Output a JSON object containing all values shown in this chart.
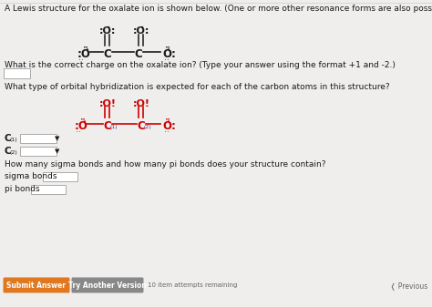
{
  "bg_color": "#f0eeec",
  "white": "#ffffff",
  "title_text": "A Lewis structure for the oxalate ion is shown below. (One or more other resonance forms are also possible.)",
  "q1_text": "What is the correct charge on the oxalate ion? (Type your answer using the format +1 and -2.)",
  "q2_text": "What type of orbital hybridization is expected for each of the carbon atoms in this structure?",
  "q3_text": "How many sigma bonds and how many pi bonds does your structure contain?",
  "sigma_label": "sigma bonds",
  "pi_label": "pi bonds",
  "submit_btn_text": "Submit Answer",
  "try_btn_text": "Try Another Version",
  "remaining_text": "10 item attempts remaining",
  "previous_text": "Previous",
  "submit_btn_color": "#e07820",
  "try_btn_color": "#888888",
  "font_size_title": 6.5,
  "font_size_body": 6.5,
  "font_size_struct": 8.5,
  "font_size_small": 5.5,
  "red_color": "#cc0000",
  "purple_color": "#7030a0",
  "black_color": "#1a1a1a",
  "gray_color": "#666666"
}
